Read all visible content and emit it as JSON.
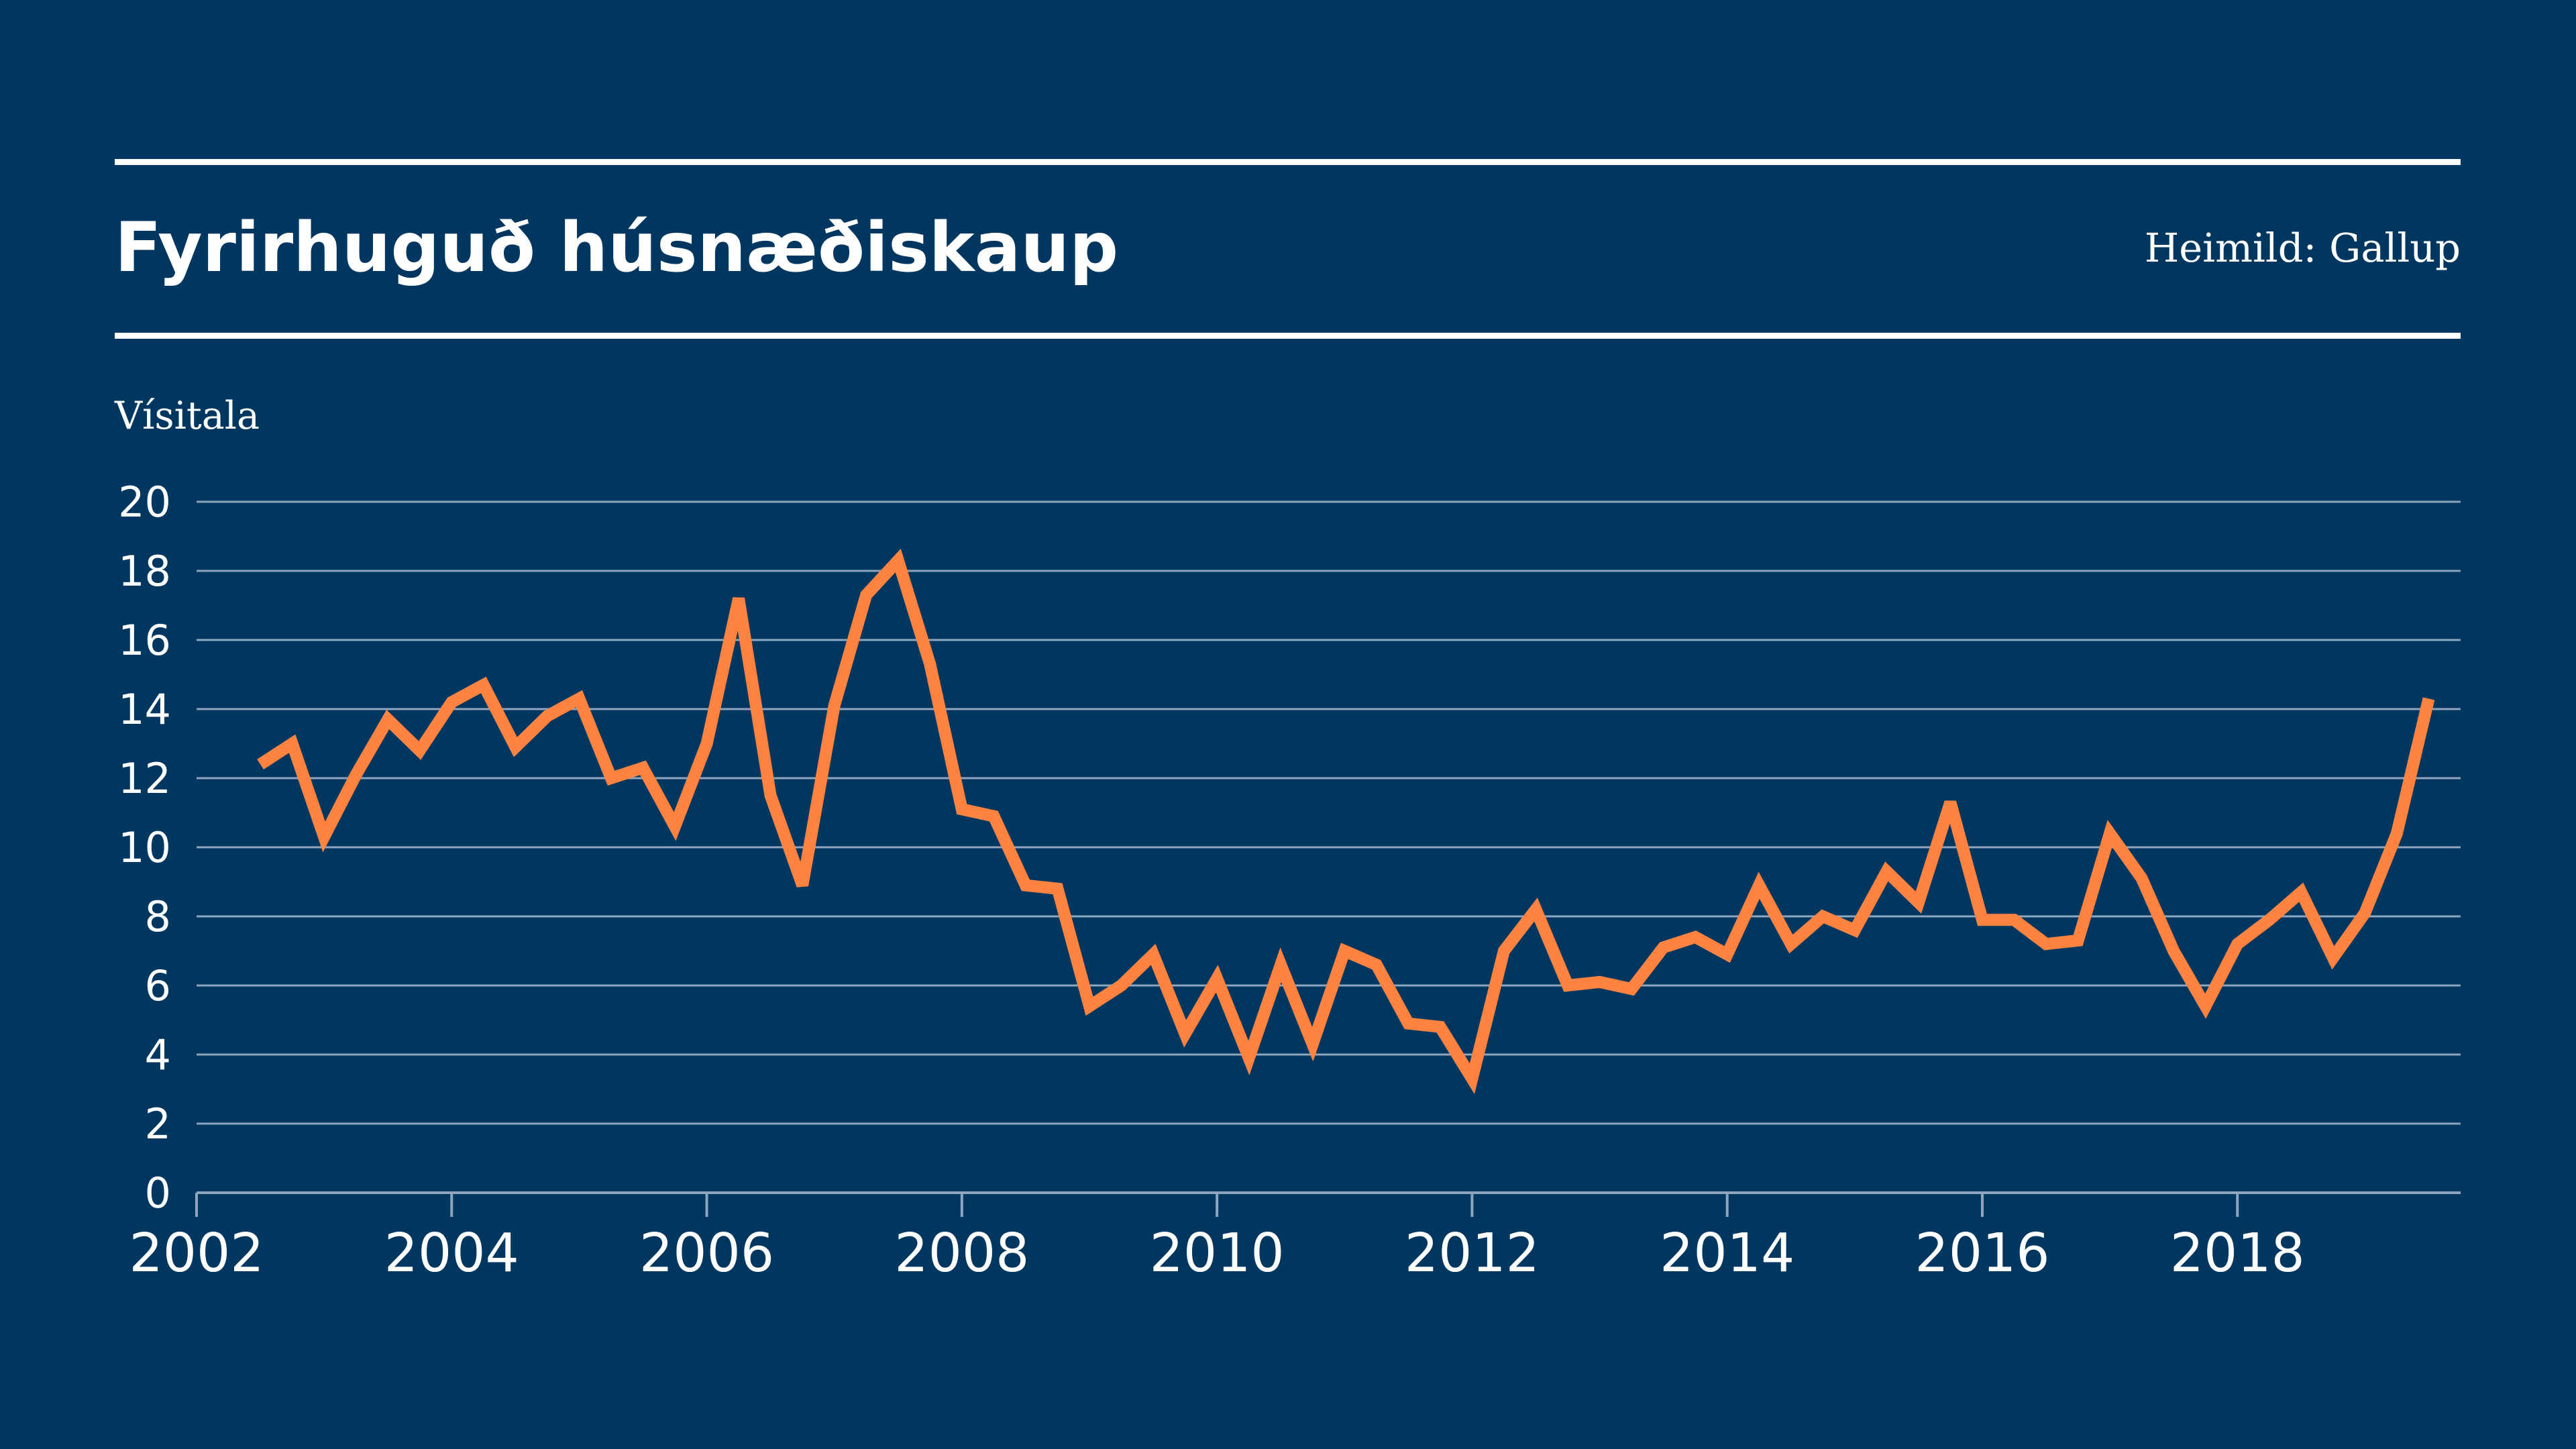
{
  "header": {
    "title": "Fyrirhuguð húsnæðiskaup",
    "source": "Heimild: Gallup"
  },
  "colors": {
    "background": "#003761",
    "line": "#ff8340",
    "grid": "#8fa5bd",
    "text": "#ffffff"
  },
  "chart_data": {
    "type": "line",
    "title": "Fyrirhuguð húsnæðiskaup",
    "ylabel": "Vísitala",
    "xlabel": "",
    "x_ticks": [
      2002,
      2004,
      2006,
      2008,
      2010,
      2012,
      2014,
      2016,
      2018
    ],
    "y_ticks": [
      0,
      2,
      4,
      6,
      8,
      10,
      12,
      14,
      16,
      18,
      20
    ],
    "xlim": [
      2002,
      2019.75
    ],
    "ylim": [
      0,
      20
    ],
    "grid": true,
    "series": [
      {
        "x": [
          2002.5,
          2002.75,
          2003.0,
          2003.25,
          2003.5,
          2003.75,
          2004.0,
          2004.25,
          2004.5,
          2004.75,
          2005.0,
          2005.25,
          2005.5,
          2005.75,
          2006.0,
          2006.25,
          2006.5,
          2006.75,
          2007.0,
          2007.25,
          2007.5,
          2007.75,
          2008.0,
          2008.25,
          2008.5,
          2008.75,
          2009.0,
          2009.25,
          2009.5,
          2009.75,
          2010.0,
          2010.25,
          2010.5,
          2010.75,
          2011.0,
          2011.25,
          2011.5,
          2011.75,
          2012.0,
          2012.25,
          2012.5,
          2012.75,
          2013.0,
          2013.25,
          2013.5,
          2013.75,
          2014.0,
          2014.25,
          2014.5,
          2014.75,
          2015.0,
          2015.25,
          2015.5,
          2015.75,
          2016.0,
          2016.25,
          2016.5,
          2016.75,
          2017.0,
          2017.25,
          2017.5,
          2017.75,
          2018.0,
          2018.25,
          2018.5,
          2018.75,
          2019.0,
          2019.25,
          2019.5
        ],
        "values": [
          12.4,
          13.0,
          10.3,
          12.1,
          13.7,
          12.8,
          14.2,
          14.7,
          12.9,
          13.8,
          14.3,
          12.0,
          12.3,
          10.6,
          13.0,
          17.2,
          11.5,
          8.9,
          14.1,
          17.3,
          18.3,
          15.3,
          11.1,
          10.9,
          8.9,
          8.8,
          5.4,
          6.0,
          6.9,
          4.6,
          6.2,
          3.9,
          6.6,
          4.3,
          7.0,
          6.6,
          4.9,
          4.8,
          3.3,
          7.0,
          8.2,
          6.0,
          6.1,
          5.9,
          7.1,
          7.4,
          6.9,
          8.9,
          7.2,
          8.0,
          7.6,
          9.3,
          8.4,
          11.3,
          7.9,
          7.9,
          7.2,
          7.3,
          10.4,
          9.1,
          7.0,
          5.4,
          7.2,
          7.9,
          8.7,
          6.8,
          8.1,
          10.4,
          14.3
        ]
      }
    ]
  }
}
